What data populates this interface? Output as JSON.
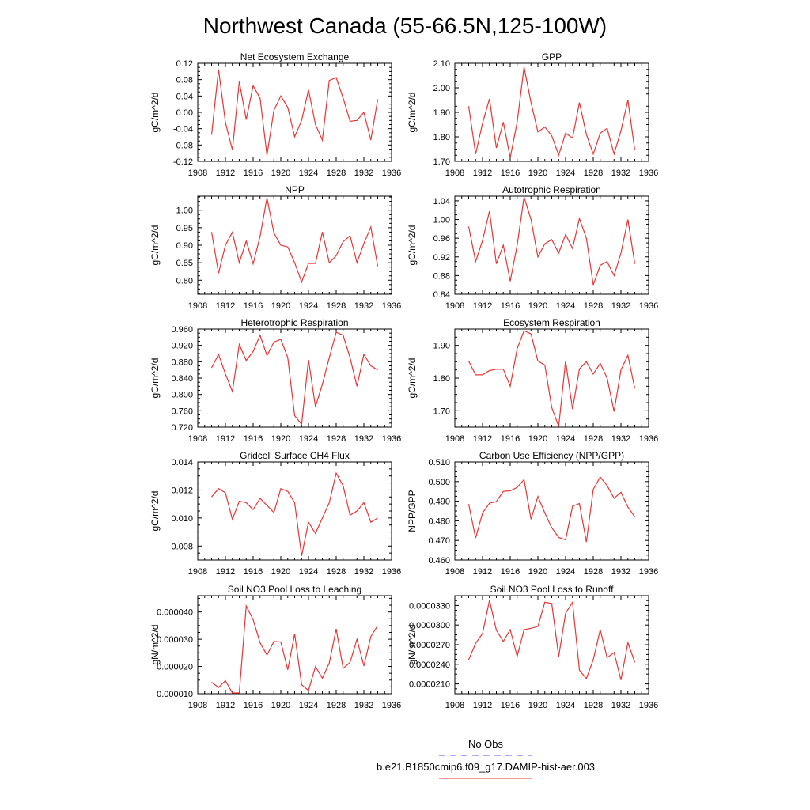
{
  "figure": {
    "title": "Northwest Canada (55-66.5N,125-100W)",
    "legend": {
      "items": [
        {
          "label": "No Obs",
          "color": "#5555ee",
          "style": "dashed"
        },
        {
          "label": "b.e21.B1850cmip6.f09_g17.DAMIP-hist-aer.003",
          "color": "#ee3333",
          "style": "solid"
        }
      ]
    }
  },
  "chart_data": [
    {
      "type": "line",
      "title": "Net Ecosystem Exchange",
      "ylabel": "gC/m^2/d",
      "xlim": [
        1908,
        1936
      ],
      "ylim": [
        -0.12,
        0.12
      ],
      "xticks": [
        1908,
        1912,
        1916,
        1920,
        1924,
        1928,
        1932,
        1936
      ],
      "yticks": [
        "-0.12",
        "-0.08",
        "-0.04",
        "0.00",
        "0.04",
        "0.08",
        "0.12"
      ],
      "x": [
        1910,
        1911,
        1912,
        1913,
        1914,
        1915,
        1916,
        1917,
        1918,
        1919,
        1920,
        1921,
        1922,
        1923,
        1924,
        1925,
        1926,
        1927,
        1928,
        1929,
        1930,
        1931,
        1932,
        1933,
        1934
      ],
      "series": [
        {
          "values": [
            -0.055,
            0.105,
            -0.025,
            -0.092,
            0.075,
            -0.018,
            0.065,
            0.035,
            -0.105,
            0.005,
            0.04,
            0.012,
            -0.06,
            -0.02,
            0.055,
            -0.03,
            -0.068,
            0.078,
            0.085,
            0.035,
            -0.022,
            -0.02,
            0.0,
            -0.068,
            0.032
          ]
        }
      ]
    },
    {
      "type": "line",
      "title": "GPP",
      "ylabel": "gC/m^2/d",
      "xlim": [
        1908,
        1936
      ],
      "ylim": [
        1.7,
        2.1
      ],
      "xticks": [
        1908,
        1912,
        1916,
        1920,
        1924,
        1928,
        1932,
        1936
      ],
      "yticks": [
        "1.70",
        "1.80",
        "1.90",
        "2.00",
        "2.10"
      ],
      "x": [
        1910,
        1911,
        1912,
        1913,
        1914,
        1915,
        1916,
        1917,
        1918,
        1919,
        1920,
        1921,
        1922,
        1923,
        1924,
        1925,
        1926,
        1927,
        1928,
        1929,
        1930,
        1931,
        1932,
        1933,
        1934
      ],
      "series": [
        {
          "values": [
            1.925,
            1.73,
            1.855,
            1.955,
            1.755,
            1.86,
            1.715,
            1.86,
            2.085,
            1.94,
            1.82,
            1.84,
            1.805,
            1.725,
            1.815,
            1.795,
            1.94,
            1.81,
            1.73,
            1.815,
            1.835,
            1.73,
            1.825,
            1.95,
            1.745
          ]
        }
      ]
    },
    {
      "type": "line",
      "title": "NPP",
      "ylabel": "gC/m^2/d",
      "xlim": [
        1908,
        1936
      ],
      "ylim": [
        0.76,
        1.04
      ],
      "xticks": [
        1908,
        1912,
        1916,
        1920,
        1924,
        1928,
        1932,
        1936
      ],
      "yticks": [
        "0.80",
        "0.85",
        "0.90",
        "0.95",
        "1.00"
      ],
      "x": [
        1910,
        1911,
        1912,
        1913,
        1914,
        1915,
        1916,
        1917,
        1918,
        1919,
        1920,
        1921,
        1922,
        1923,
        1924,
        1925,
        1926,
        1927,
        1928,
        1929,
        1930,
        1931,
        1932,
        1933,
        1934
      ],
      "series": [
        {
          "values": [
            0.938,
            0.82,
            0.9,
            0.937,
            0.85,
            0.912,
            0.847,
            0.925,
            1.035,
            0.935,
            0.9,
            0.895,
            0.85,
            0.795,
            0.848,
            0.848,
            0.938,
            0.85,
            0.87,
            0.91,
            0.927,
            0.85,
            0.905,
            0.952,
            0.84
          ]
        }
      ]
    },
    {
      "type": "line",
      "title": "Autotrophic Respiration",
      "ylabel": "gC/m^2/d",
      "xlim": [
        1908,
        1936
      ],
      "ylim": [
        0.84,
        1.05
      ],
      "xticks": [
        1908,
        1912,
        1916,
        1920,
        1924,
        1928,
        1932,
        1936
      ],
      "yticks": [
        "0.84",
        "0.88",
        "0.92",
        "0.96",
        "1.00",
        "1.04"
      ],
      "x": [
        1910,
        1911,
        1912,
        1913,
        1914,
        1915,
        1916,
        1917,
        1918,
        1919,
        1920,
        1921,
        1922,
        1923,
        1924,
        1925,
        1926,
        1927,
        1928,
        1929,
        1930,
        1931,
        1932,
        1933,
        1934
      ],
      "series": [
        {
          "values": [
            0.985,
            0.91,
            0.955,
            1.018,
            0.905,
            0.945,
            0.868,
            0.945,
            1.048,
            1.0,
            0.92,
            0.948,
            0.957,
            0.928,
            0.968,
            0.938,
            1.002,
            0.96,
            0.86,
            0.902,
            0.91,
            0.88,
            0.928,
            1.0,
            0.905
          ]
        }
      ]
    },
    {
      "type": "line",
      "title": "Heterotrophic Respiration",
      "ylabel": "gC/m^2/d",
      "xlim": [
        1908,
        1936
      ],
      "ylim": [
        0.72,
        0.96
      ],
      "xticks": [
        1908,
        1912,
        1916,
        1920,
        1924,
        1928,
        1932,
        1936
      ],
      "yticks": [
        "0.720",
        "0.760",
        "0.800",
        "0.840",
        "0.880",
        "0.920",
        "0.960"
      ],
      "x": [
        1910,
        1911,
        1912,
        1913,
        1914,
        1915,
        1916,
        1917,
        1918,
        1919,
        1920,
        1921,
        1922,
        1923,
        1924,
        1925,
        1926,
        1927,
        1928,
        1929,
        1930,
        1931,
        1932,
        1933,
        1934
      ],
      "series": [
        {
          "values": [
            0.865,
            0.898,
            0.85,
            0.807,
            0.922,
            0.883,
            0.905,
            0.945,
            0.895,
            0.928,
            0.935,
            0.89,
            0.748,
            0.727,
            0.885,
            0.77,
            0.825,
            0.89,
            0.952,
            0.945,
            0.89,
            0.82,
            0.898,
            0.87,
            0.86
          ]
        }
      ]
    },
    {
      "type": "line",
      "title": "Ecosystem Respiration",
      "ylabel": "gC/m^2/d",
      "xlim": [
        1908,
        1936
      ],
      "ylim": [
        1.65,
        1.95
      ],
      "xticks": [
        1908,
        1912,
        1916,
        1920,
        1924,
        1928,
        1932,
        1936
      ],
      "yticks": [
        "1.70",
        "1.80",
        "1.90"
      ],
      "x": [
        1910,
        1911,
        1912,
        1913,
        1914,
        1915,
        1916,
        1917,
        1918,
        1919,
        1920,
        1921,
        1922,
        1923,
        1924,
        1925,
        1926,
        1927,
        1928,
        1929,
        1930,
        1931,
        1932,
        1933,
        1934
      ],
      "series": [
        {
          "values": [
            1.852,
            1.81,
            1.81,
            1.823,
            1.827,
            1.827,
            1.775,
            1.89,
            1.945,
            1.935,
            1.852,
            1.84,
            1.71,
            1.652,
            1.852,
            1.705,
            1.828,
            1.85,
            1.812,
            1.845,
            1.8,
            1.698,
            1.825,
            1.87,
            1.768
          ]
        }
      ]
    },
    {
      "type": "line",
      "title": "Gridcell Surface CH4 Flux",
      "ylabel": "gC/m^2/d",
      "xlim": [
        1908,
        1936
      ],
      "ylim": [
        0.007,
        0.014
      ],
      "xticks": [
        1908,
        1912,
        1916,
        1920,
        1924,
        1928,
        1932,
        1936
      ],
      "yticks": [
        "0.008",
        "0.010",
        "0.012",
        "0.014"
      ],
      "x": [
        1910,
        1911,
        1912,
        1913,
        1914,
        1915,
        1916,
        1917,
        1918,
        1919,
        1920,
        1921,
        1922,
        1923,
        1924,
        1925,
        1926,
        1927,
        1928,
        1929,
        1930,
        1931,
        1932,
        1933,
        1934
      ],
      "series": [
        {
          "values": [
            0.0115,
            0.0121,
            0.0118,
            0.0099,
            0.0112,
            0.0111,
            0.0106,
            0.0114,
            0.0109,
            0.0104,
            0.0121,
            0.0119,
            0.0111,
            0.0073,
            0.0097,
            0.0089,
            0.01,
            0.0111,
            0.0132,
            0.0123,
            0.0102,
            0.0105,
            0.0111,
            0.0097,
            0.01
          ]
        }
      ]
    },
    {
      "type": "line",
      "title": "Carbon Use Efficiency (NPP/GPP)",
      "ylabel": "NPP/GPP",
      "xlim": [
        1908,
        1936
      ],
      "ylim": [
        0.46,
        0.51
      ],
      "xticks": [
        1908,
        1912,
        1916,
        1920,
        1924,
        1928,
        1932,
        1936
      ],
      "yticks": [
        "0.460",
        "0.470",
        "0.480",
        "0.490",
        "0.500",
        "0.510"
      ],
      "x": [
        1910,
        1911,
        1912,
        1913,
        1914,
        1915,
        1916,
        1917,
        1918,
        1919,
        1920,
        1921,
        1922,
        1923,
        1924,
        1925,
        1926,
        1927,
        1928,
        1929,
        1930,
        1931,
        1932,
        1933,
        1934
      ],
      "series": [
        {
          "values": [
            0.4885,
            0.4712,
            0.484,
            0.489,
            0.4898,
            0.495,
            0.4953,
            0.497,
            0.501,
            0.4808,
            0.4924,
            0.484,
            0.4765,
            0.4715,
            0.4703,
            0.4874,
            0.4888,
            0.4692,
            0.496,
            0.5023,
            0.498,
            0.4915,
            0.4945,
            0.487,
            0.482
          ]
        }
      ]
    },
    {
      "type": "line",
      "title": "Soil NO3 Pool Loss to Leaching",
      "ylabel": "gN/m^2/d",
      "xlim": [
        1908,
        1936
      ],
      "ylim": [
        1e-05,
        4.6e-05
      ],
      "xticks": [
        1908,
        1912,
        1916,
        1920,
        1924,
        1928,
        1932,
        1936
      ],
      "yticks": [
        "0.000010",
        "0.000020",
        "0.000030",
        "0.000040"
      ],
      "x": [
        1910,
        1911,
        1912,
        1913,
        1914,
        1915,
        1916,
        1917,
        1918,
        1919,
        1920,
        1921,
        1922,
        1923,
        1924,
        1925,
        1926,
        1927,
        1928,
        1929,
        1930,
        1931,
        1932,
        1933,
        1934
      ],
      "series": [
        {
          "values": [
            1.42e-05,
            1.23e-05,
            1.48e-05,
            1.03e-05,
            1.03e-05,
            4.22e-05,
            3.72e-05,
            2.87e-05,
            2.42e-05,
            2.92e-05,
            2.9e-05,
            1.88e-05,
            3.2e-05,
            1.33e-05,
            1.12e-05,
            2e-05,
            1.57e-05,
            2.13e-05,
            3.38e-05,
            1.93e-05,
            2.15e-05,
            3e-05,
            2.02e-05,
            3.1e-05,
            3.5e-05
          ]
        }
      ]
    },
    {
      "type": "line",
      "title": "Soil NO3 Pool Loss to Runoff",
      "ylabel": "gN/m^2/d",
      "xlim": [
        1908,
        1936
      ],
      "ylim": [
        1.95e-05,
        3.45e-05
      ],
      "xticks": [
        1908,
        1912,
        1916,
        1920,
        1924,
        1928,
        1932,
        1936
      ],
      "yticks": [
        "0.0000210",
        "0.0000240",
        "0.0000270",
        "0.0000300",
        "0.0000330"
      ],
      "x": [
        1910,
        1911,
        1912,
        1913,
        1914,
        1915,
        1916,
        1917,
        1918,
        1919,
        1920,
        1921,
        1922,
        1923,
        1924,
        1925,
        1926,
        1927,
        1928,
        1929,
        1930,
        1931,
        1932,
        1933,
        1934
      ],
      "series": [
        {
          "values": [
            2.47e-05,
            2.72e-05,
            2.87e-05,
            3.38e-05,
            2.92e-05,
            2.75e-05,
            2.93e-05,
            2.52e-05,
            2.93e-05,
            2.95e-05,
            2.98e-05,
            3.35e-05,
            3.33e-05,
            2.52e-05,
            3.18e-05,
            3.35e-05,
            2.31e-05,
            2.18e-05,
            2.47e-05,
            2.93e-05,
            2.5e-05,
            2.58e-05,
            2.16e-05,
            2.73e-05,
            2.43e-05
          ]
        }
      ]
    }
  ]
}
